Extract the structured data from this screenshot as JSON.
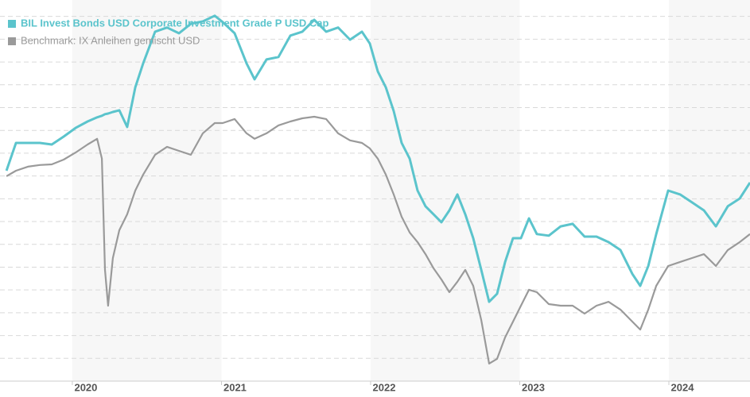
{
  "chart_data": {
    "type": "line",
    "x": [
      2019.558,
      2019.622,
      2019.702,
      2019.782,
      2019.862,
      2019.942,
      2020.022,
      2020.102,
      2020.166,
      2020.198,
      2020.219,
      2020.24,
      2020.272,
      2020.315,
      2020.368,
      2020.422,
      2020.475,
      2020.555,
      2020.635,
      2020.715,
      2020.795,
      2020.875,
      2020.955,
      2021.008,
      2021.088,
      2021.168,
      2021.222,
      2021.302,
      2021.382,
      2021.462,
      2021.542,
      2021.622,
      2021.702,
      2021.782,
      2021.862,
      2021.942,
      2021.995,
      2022.048,
      2022.102,
      2022.155,
      2022.208,
      2022.262,
      2022.315,
      2022.368,
      2022.422,
      2022.475,
      2022.528,
      2022.582,
      2022.635,
      2022.688,
      2022.742,
      2022.795,
      2022.848,
      2022.902,
      2022.955,
      2023.008,
      2023.062,
      2023.115,
      2023.195,
      2023.275,
      2023.355,
      2023.435,
      2023.515,
      2023.595,
      2023.675,
      2023.755,
      2023.808,
      2023.862,
      2023.915,
      2023.995,
      2024.075,
      2024.155,
      2024.235,
      2024.315,
      2024.395,
      2024.475,
      2024.544
    ],
    "series": [
      {
        "name": "BIL Invest Bonds USD Corporate Investment Grade P USD Cap",
        "color": "#5bc4cc",
        "values": [
          9.23,
          10.45,
          10.45,
          10.45,
          10.38,
          10.73,
          11.11,
          11.39,
          11.57,
          11.64,
          11.71,
          11.74,
          11.81,
          11.88,
          11.15,
          12.89,
          13.94,
          15.33,
          15.51,
          15.26,
          15.68,
          15.78,
          16.03,
          15.75,
          15.26,
          13.94,
          13.24,
          14.11,
          14.22,
          15.16,
          15.33,
          15.85,
          15.33,
          15.51,
          14.98,
          15.33,
          14.81,
          13.59,
          12.89,
          11.85,
          10.45,
          9.76,
          8.36,
          7.67,
          7.32,
          6.97,
          7.49,
          8.19,
          7.32,
          6.27,
          4.88,
          3.48,
          3.83,
          5.23,
          6.27,
          6.27,
          7.14,
          6.45,
          6.38,
          6.79,
          6.9,
          6.34,
          6.34,
          6.1,
          5.75,
          4.7,
          4.18,
          5.05,
          6.45,
          8.36,
          8.19,
          7.84,
          7.49,
          6.79,
          7.67,
          8.01,
          8.71
        ]
      },
      {
        "name": "Benchmark: IX Anleihen gemischt USD",
        "color": "#9a9a9a",
        "values": [
          8.99,
          9.23,
          9.41,
          9.48,
          9.51,
          9.72,
          10.03,
          10.38,
          10.63,
          9.76,
          4.88,
          3.31,
          5.4,
          6.62,
          7.32,
          8.36,
          9.06,
          9.93,
          10.28,
          10.1,
          9.93,
          10.87,
          11.32,
          11.32,
          11.5,
          10.87,
          10.63,
          10.87,
          11.22,
          11.39,
          11.53,
          11.6,
          11.5,
          10.87,
          10.56,
          10.45,
          10.21,
          9.76,
          9.06,
          8.19,
          7.21,
          6.52,
          6.1,
          5.57,
          4.95,
          4.46,
          3.9,
          4.36,
          4.88,
          4.18,
          2.68,
          0.77,
          0.98,
          1.92,
          2.61,
          3.31,
          4.01,
          3.9,
          3.38,
          3.31,
          3.31,
          2.96,
          3.31,
          3.48,
          3.14,
          2.61,
          2.26,
          3.14,
          4.18,
          5.05,
          5.23,
          5.4,
          5.57,
          5.05,
          5.75,
          6.1,
          6.45
        ]
      }
    ],
    "xlim": [
      2019.515,
      2024.544
    ],
    "xticks": [
      2020,
      2021,
      2022,
      2023,
      2024
    ],
    "ylim": [
      0,
      16.72
    ],
    "yticks": [
      1,
      2,
      3,
      4,
      5,
      6,
      7,
      8,
      9,
      10,
      11,
      12,
      13,
      14,
      15,
      16
    ],
    "grid": true,
    "legend": "top-left"
  }
}
